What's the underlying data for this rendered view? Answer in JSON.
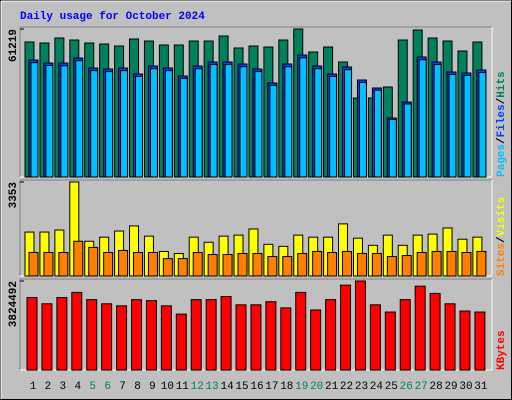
{
  "chart_data": [
    {
      "type": "bar",
      "title": "Daily usage for October 2024",
      "categories": [
        "1",
        "2",
        "3",
        "4",
        "5",
        "6",
        "7",
        "8",
        "9",
        "10",
        "11",
        "12",
        "13",
        "14",
        "15",
        "16",
        "17",
        "18",
        "19",
        "20",
        "21",
        "22",
        "23",
        "24",
        "25",
        "26",
        "27",
        "28",
        "29",
        "30",
        "31"
      ],
      "label_colors": [
        "#000000",
        "#000000",
        "#000000",
        "#000000",
        "#00805c",
        "#00805c",
        "#000000",
        "#000000",
        "#000000",
        "#000000",
        "#000000",
        "#00805c",
        "#00805c",
        "#000000",
        "#000000",
        "#000000",
        "#000000",
        "#000000",
        "#00805c",
        "#00805c",
        "#000000",
        "#000000",
        "#000000",
        "#000000",
        "#000000",
        "#00805c",
        "#00805c",
        "#000000",
        "#000000",
        "#000000",
        "#000000"
      ],
      "ylim": [
        0,
        61219
      ],
      "yticks": [
        61219
      ],
      "legend_separator": "/",
      "series": [
        {
          "name": "Hits",
          "color": "#00805c",
          "values": [
            55840,
            55425,
            57493,
            56666,
            55425,
            55011,
            54184,
            57080,
            56252,
            54598,
            54598,
            56252,
            56252,
            58320,
            53357,
            54184,
            53770,
            56666,
            61219,
            51703,
            53770,
            47566,
            32676,
            32676,
            37226,
            56666,
            60805,
            57493,
            56252,
            52116,
            55840
          ]
        },
        {
          "name": "Files",
          "color": "#0040ff",
          "values": [
            48393,
            47153,
            47153,
            49220,
            45084,
            44670,
            45084,
            42602,
            45912,
            45084,
            41775,
            45912,
            47566,
            47566,
            46739,
            44670,
            38880,
            46739,
            50461,
            45912,
            42602,
            45498,
            40121,
            36812,
            24403,
            31021,
            49634,
            47566,
            43429,
            43015,
            44257
          ]
        },
        {
          "name": "Pages",
          "color": "#00c0ff",
          "values": [
            47300,
            46100,
            46000,
            48100,
            44000,
            43600,
            44000,
            41600,
            44800,
            44000,
            40800,
            44800,
            46500,
            46500,
            45600,
            43600,
            37900,
            45600,
            49300,
            44800,
            41600,
            44400,
            39100,
            35900,
            23800,
            30200,
            48500,
            46500,
            42400,
            42000,
            43200
          ]
        }
      ]
    },
    {
      "type": "bar",
      "ylim": [
        0,
        3353
      ],
      "yticks": [
        3353
      ],
      "legend_separator": "/",
      "series": [
        {
          "name": "Visits",
          "color": "#ffff00",
          "values": [
            1567,
            1567,
            1640,
            3353,
            1239,
            1385,
            1604,
            1786,
            1422,
            875,
            802,
            1385,
            1203,
            1422,
            1458,
            1677,
            1130,
            1057,
            1458,
            1385,
            1385,
            1859,
            1349,
            1094,
            1458,
            1094,
            1458,
            1494,
            1713,
            1312,
            1385
          ]
        },
        {
          "name": "Sites",
          "color": "#ff8000",
          "values": [
            838,
            838,
            838,
            1239,
            1021,
            838,
            911,
            838,
            838,
            620,
            620,
            838,
            765,
            765,
            802,
            802,
            693,
            693,
            802,
            875,
            838,
            875,
            802,
            802,
            693,
            729,
            838,
            875,
            875,
            838,
            875
          ]
        }
      ]
    },
    {
      "type": "bar",
      "ylim": [
        0,
        3824492
      ],
      "yticks": [
        3824492
      ],
      "series": [
        {
          "name": "KBytes",
          "color": "#ff0000",
          "values": [
            3112970,
            2846144,
            3112970,
            3335325,
            3024028,
            2846144,
            2757202,
            3024028,
            2979557,
            2757202,
            2401434,
            3024028,
            3024028,
            3157441,
            2801673,
            2801673,
            2935086,
            2668260,
            3335325,
            2579318,
            3024028,
            3646622,
            3824492,
            2801673,
            2490376,
            3024028,
            3602151,
            3290854,
            2846144,
            2534847,
            2490376
          ]
        }
      ]
    }
  ]
}
